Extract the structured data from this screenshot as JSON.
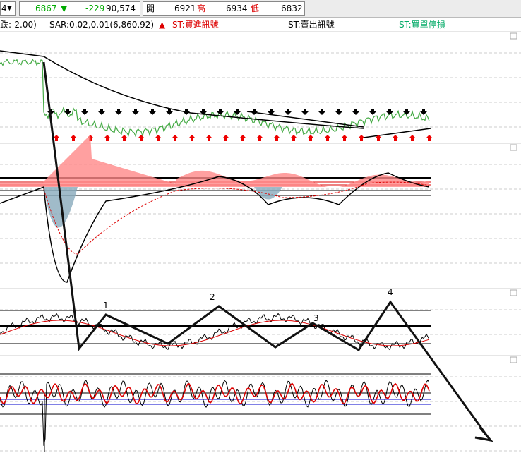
{
  "toolbar": {
    "period": "4",
    "last": "6867",
    "change": "-229",
    "volume": "90,574",
    "open_label": "開",
    "open": "6921",
    "high_label": "高",
    "high": "6934",
    "low_label": "低",
    "low": "6832"
  },
  "legend": {
    "prefix": "跌:-2.00)",
    "sar": "SAR:0.02,0.01(6,860.92)",
    "buy": "ST:買進訊號",
    "sell": "ST:賣出訊號",
    "stop": "ST:買單停損"
  },
  "waves": [
    "1",
    "2",
    "3",
    "4"
  ]
}
